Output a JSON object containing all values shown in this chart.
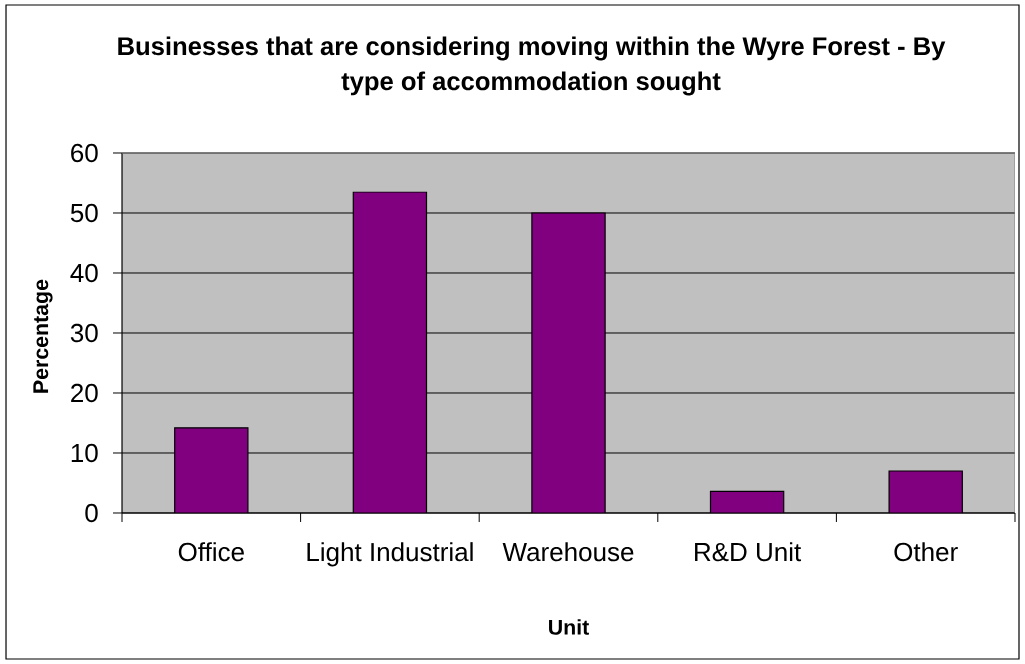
{
  "chart_data": {
    "type": "bar",
    "title": "Businesses that are considering moving within the Wyre Forest - By type of accommodation sought",
    "xlabel": "Unit",
    "ylabel": "Percentage",
    "categories": [
      "Office",
      "Light Industrial",
      "Warehouse",
      "R&D Unit",
      "Other"
    ],
    "values": [
      14.2,
      53.5,
      50,
      3.6,
      7
    ],
    "color": "#800080",
    "ylim": [
      0,
      60
    ],
    "yticks": [
      0,
      10,
      20,
      30,
      40,
      50,
      60
    ],
    "grid": "y"
  }
}
